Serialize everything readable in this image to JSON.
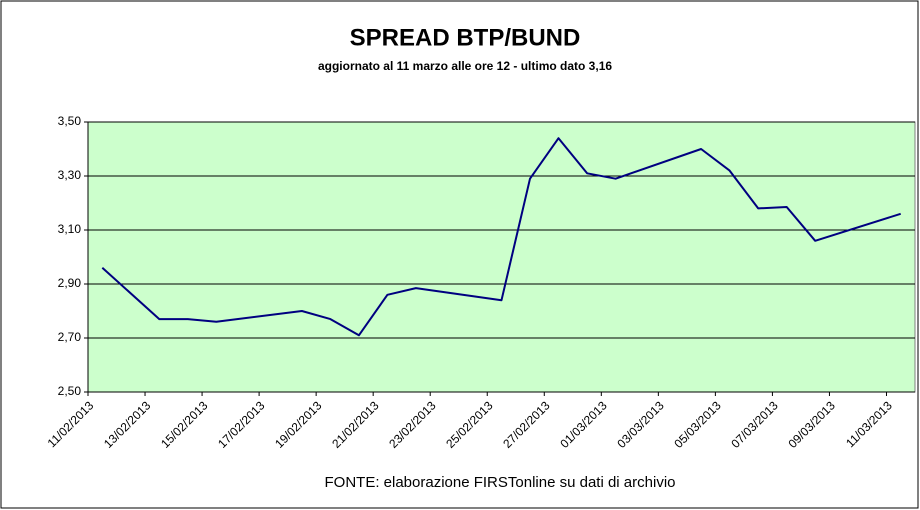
{
  "chart_data": {
    "type": "line",
    "title": "SPREAD  BTP/BUND",
    "subtitle": "aggiornato al 11 marzo alle ore 12 - ultimo dato 3,16",
    "source": "FONTE: elaborazione FIRSTonline su dati di archivio",
    "x": [
      "11/02/2013",
      "13/02/2013",
      "14/02/2013",
      "15/02/2013",
      "18/02/2013",
      "19/02/2013",
      "20/02/2013",
      "21/02/2013",
      "22/02/2013",
      "25/02/2013",
      "26/02/2013",
      "27/02/2013",
      "28/02/2013",
      "01/03/2013",
      "04/03/2013",
      "05/03/2013",
      "06/03/2013",
      "07/03/2013",
      "08/03/2013",
      "11/03/2013"
    ],
    "series": [
      {
        "name": "Spread BTP/Bund",
        "color": "#000080",
        "values": [
          2.96,
          2.77,
          2.77,
          2.76,
          2.8,
          2.77,
          2.71,
          2.86,
          2.885,
          2.84,
          3.29,
          3.44,
          3.31,
          3.29,
          3.4,
          3.32,
          3.18,
          3.185,
          3.06,
          3.16
        ]
      }
    ],
    "xticks": [
      "11/02/2013",
      "13/02/2013",
      "15/02/2013",
      "17/02/2013",
      "19/02/2013",
      "21/02/2013",
      "23/02/2013",
      "25/02/2013",
      "27/02/2013",
      "01/03/2013",
      "03/03/2013",
      "05/03/2013",
      "07/03/2013",
      "09/03/2013",
      "11/03/2013"
    ],
    "ylim": [
      2.5,
      3.5
    ],
    "yticks": [
      {
        "value": 2.5,
        "label": "2,50"
      },
      {
        "value": 2.7,
        "label": "2,70"
      },
      {
        "value": 2.9,
        "label": "2,90"
      },
      {
        "value": 3.1,
        "label": "3,10"
      },
      {
        "value": 3.3,
        "label": "3,30"
      },
      {
        "value": 3.5,
        "label": "3,50"
      }
    ],
    "grid": true,
    "plot_background": "#ccffcc"
  }
}
